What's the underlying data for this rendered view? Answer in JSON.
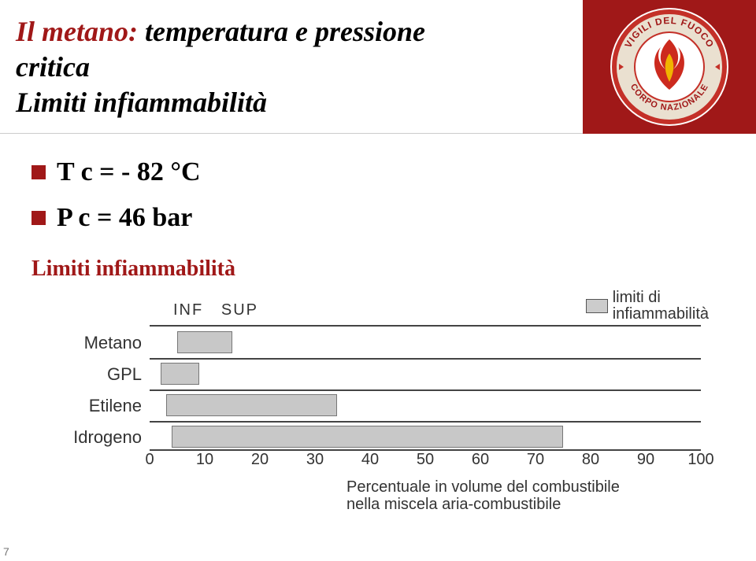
{
  "title": {
    "line1_prefix": "Il metano:",
    "line1_rest": " temperatura e pressione",
    "line2": "critica",
    "line3": "Limiti infiammabilità"
  },
  "logo": {
    "top_text": "VIGILI DEL FUOCO",
    "bottom_text": "CORPO NAZIONALE",
    "ring_color": "#c43028",
    "arc_bg": "#eae0d0",
    "text_color": "#a01818",
    "flame_red": "#cc2a1e",
    "flame_yellow": "#f0b400"
  },
  "bullets": [
    {
      "text": "T c = - 82 °C"
    },
    {
      "text": "P c =  46 bar"
    }
  ],
  "sub_heading": "Limiti infiammabilità",
  "chart": {
    "xlim": [
      0,
      100
    ],
    "xtick_step": 10,
    "header_left": "INF",
    "header_right": "SUP",
    "legend": "limiti di\ninfiammabilità",
    "xaxis_label": "Percentuale in volume del combustibile\nnella miscela aria-combustibile",
    "bar_fill": "#c8c8c8",
    "axis_color": "#444444",
    "rows": [
      {
        "label": "Metano",
        "low": 5,
        "high": 15
      },
      {
        "label": "GPL",
        "low": 2,
        "high": 9
      },
      {
        "label": "Etilene",
        "low": 3,
        "high": 34
      },
      {
        "label": "Idrogeno",
        "low": 4,
        "high": 75
      }
    ]
  },
  "page_number": "7"
}
